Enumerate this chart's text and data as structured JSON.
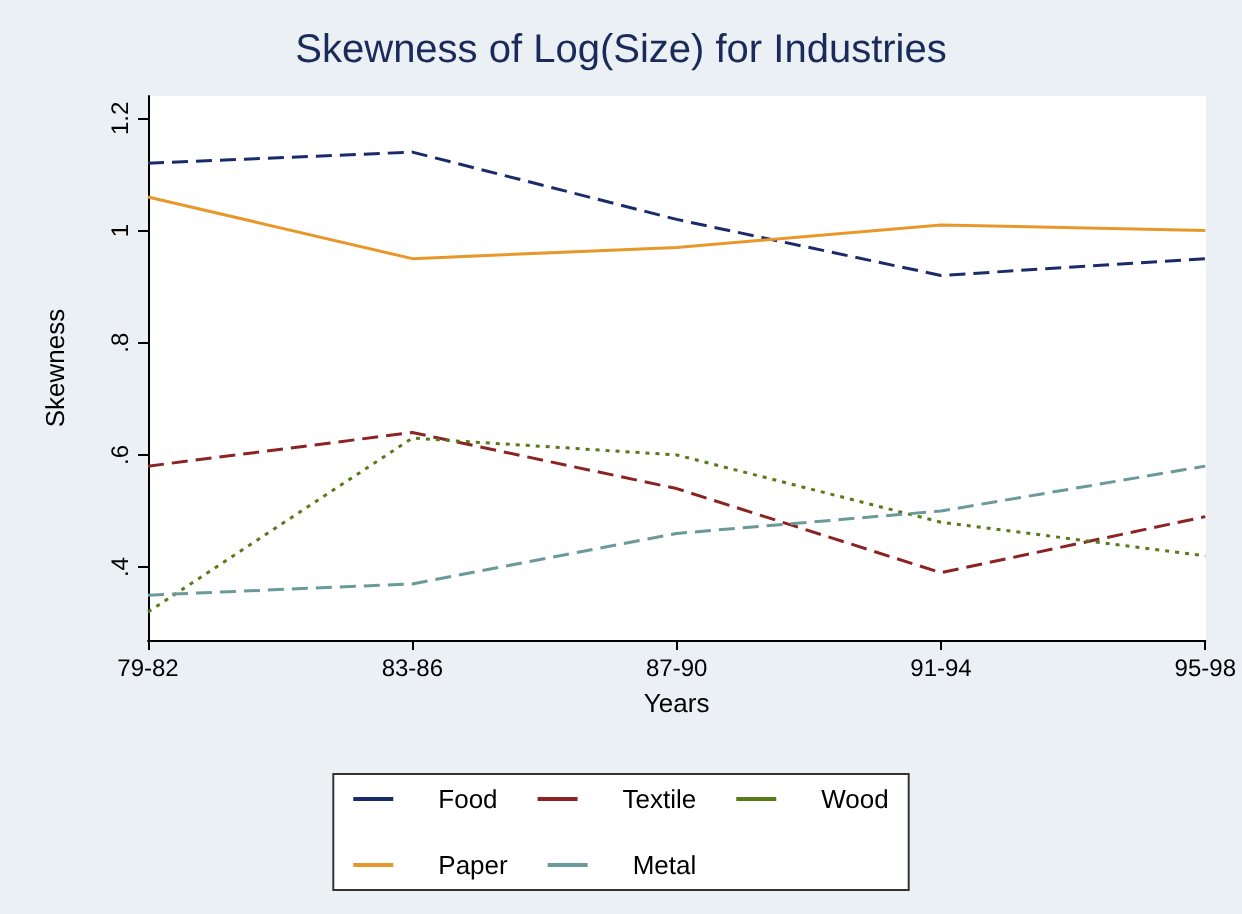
{
  "chart_data": {
    "type": "line",
    "title": "Skewness of Log(Size) for Industries",
    "xlabel": "Years",
    "ylabel": "Skewness",
    "categories": [
      "79-82",
      "83-86",
      "87-90",
      "91-94",
      "95-98"
    ],
    "series": [
      {
        "name": "Food",
        "color": "#1a2b6b",
        "line_style": "dashed",
        "values": [
          1.12,
          1.14,
          1.02,
          0.92,
          0.95
        ]
      },
      {
        "name": "Textile",
        "color": "#8b2323",
        "line_style": "dashed",
        "values": [
          0.58,
          0.64,
          0.54,
          0.39,
          0.49
        ]
      },
      {
        "name": "Wood",
        "color": "#5a7a1a",
        "line_style": "dotted",
        "values": [
          0.32,
          0.63,
          0.6,
          0.48,
          0.42
        ]
      },
      {
        "name": "Paper",
        "color": "#e8982a",
        "line_style": "solid",
        "values": [
          1.06,
          0.95,
          0.97,
          1.01,
          1.0
        ]
      },
      {
        "name": "Metal",
        "color": "#6a9a9a",
        "line_style": "dashed",
        "values": [
          0.35,
          0.37,
          0.46,
          0.5,
          0.58
        ]
      }
    ],
    "ylim": [
      0.27,
      1.24
    ],
    "yticks": [
      {
        "value": 0.4,
        "label": ".4"
      },
      {
        "value": 0.6,
        "label": ".6"
      },
      {
        "value": 0.8,
        "label": ".8"
      },
      1,
      {
        "value": 1.2,
        "label": "1.2"
      }
    ],
    "grid": false,
    "legend": "bottom",
    "marker": "none"
  }
}
